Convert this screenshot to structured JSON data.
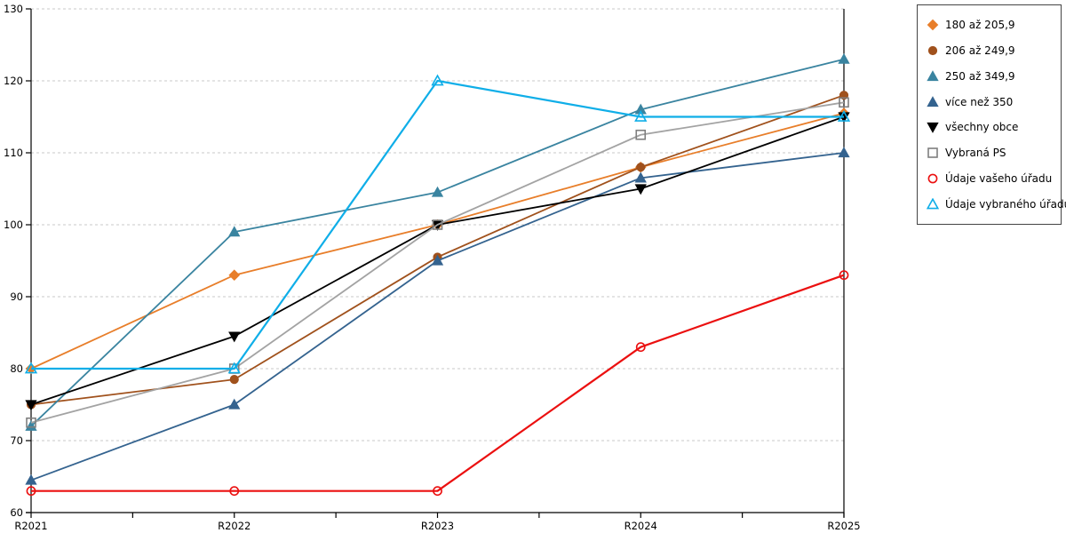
{
  "chart_data": {
    "type": "line",
    "title": "",
    "xlabel": "",
    "ylabel": "",
    "x_categories": [
      "R2021",
      "R2022",
      "R2023",
      "R2024",
      "R2025"
    ],
    "ylim": [
      60,
      130
    ],
    "yticks": [
      60,
      70,
      80,
      90,
      100,
      110,
      120,
      130
    ],
    "grid": "horizontal-dashed",
    "legend_position": "outside-top-right",
    "series": [
      {
        "name": "180 až 205,9",
        "color": "#E87E2A",
        "marker": "diamond",
        "marker_fill": "filled",
        "values": [
          80,
          93,
          100,
          108,
          115.5
        ]
      },
      {
        "name": "206 až 249,9",
        "color": "#A0511C",
        "marker": "circle",
        "marker_fill": "filled",
        "values": [
          75,
          78.5,
          95.5,
          108,
          118
        ]
      },
      {
        "name": "250 až 349,9",
        "color": "#3A84A0",
        "marker": "triangle-up",
        "marker_fill": "filled",
        "values": [
          72,
          99,
          104.5,
          116,
          123
        ]
      },
      {
        "name": "více než 350",
        "color": "#34638F",
        "marker": "triangle-up",
        "marker_fill": "filled",
        "values": [
          64.5,
          75,
          95,
          106.5,
          110
        ]
      },
      {
        "name": "všechny obce",
        "color": "#000000",
        "marker": "triangle-down",
        "marker_fill": "filled",
        "values": [
          75,
          84.5,
          100,
          105,
          115
        ]
      },
      {
        "name": "Vybraná PS",
        "color": "#A3A3A3",
        "marker_color": "#7F7F7F",
        "marker": "square",
        "marker_fill": "open",
        "values": [
          72.5,
          80,
          100,
          112.5,
          117
        ]
      },
      {
        "name": "Údaje vašeho úřadu",
        "color": "#EB1010",
        "marker": "circle",
        "marker_fill": "open",
        "values": [
          63,
          63,
          63,
          83,
          93
        ]
      },
      {
        "name": "Údaje vybraného úřadu",
        "color": "#0FAEE8",
        "marker": "triangle-up",
        "marker_fill": "open",
        "values": [
          80,
          80,
          120,
          115,
          115
        ]
      }
    ],
    "axis_color": "#000000",
    "gridline_color": "#C9C9C9",
    "tick_label_color": "#000000"
  }
}
